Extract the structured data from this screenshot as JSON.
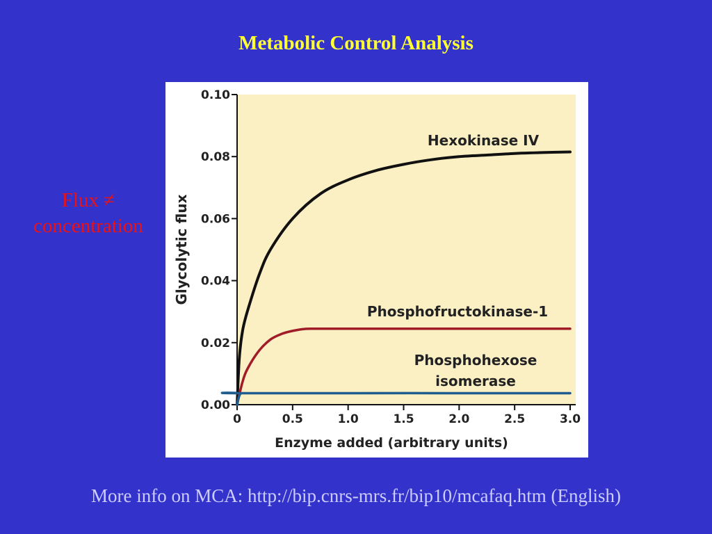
{
  "slide": {
    "title": "Metabolic Control Analysis",
    "side_note": [
      "Flux ≠",
      "concentration"
    ],
    "footer": "More info on MCA: http://bip.cnrs-mrs.fr/bip10/mcafaq.htm (English)"
  },
  "colors": {
    "background": "#3333cc",
    "title": "#ffff33",
    "side_note": "#ee1111",
    "footer": "#ccccff",
    "plot_area": "#fbefc4"
  },
  "chart_data": {
    "type": "line",
    "title": "",
    "xlabel": "Enzyme added (arbitrary units)",
    "ylabel": "Glycolytic flux",
    "xlim": [
      0,
      3.0
    ],
    "ylim": [
      0,
      0.1
    ],
    "x_ticks": [
      "0",
      "0.5",
      "1.0",
      "1.5",
      "2.0",
      "2.5",
      "3.0"
    ],
    "y_ticks": [
      "0.00",
      "0.02",
      "0.04",
      "0.06",
      "0.08",
      "0.10"
    ],
    "grid": false,
    "series": [
      {
        "name": "Hexokinase IV",
        "color": "#111111",
        "x": [
          0,
          0.02,
          0.05,
          0.1,
          0.2,
          0.3,
          0.5,
          0.75,
          1.0,
          1.25,
          1.5,
          1.75,
          2.0,
          2.25,
          2.5,
          2.75,
          3.0
        ],
        "y": [
          0,
          0.015,
          0.024,
          0.031,
          0.042,
          0.05,
          0.06,
          0.068,
          0.0725,
          0.0755,
          0.0775,
          0.079,
          0.08,
          0.0805,
          0.081,
          0.0813,
          0.0815
        ]
      },
      {
        "name": "Phosphofructokinase-1",
        "color": "#a01c28",
        "x": [
          0,
          0.05,
          0.1,
          0.2,
          0.3,
          0.4,
          0.5,
          0.6,
          0.7,
          1.0,
          1.5,
          2.0,
          2.5,
          3.0
        ],
        "y": [
          0,
          0.0075,
          0.012,
          0.0175,
          0.021,
          0.0228,
          0.0238,
          0.0244,
          0.0245,
          0.0245,
          0.0245,
          0.0245,
          0.0245,
          0.0245
        ]
      },
      {
        "name": "Phosphohexose isomerase",
        "name_lines": [
          "Phosphohexose",
          "isomerase"
        ],
        "color": "#1f5d8e",
        "x": [
          0,
          0.03,
          0.1,
          3.0
        ],
        "y": [
          0,
          0.0035,
          0.0037,
          0.0037
        ]
      }
    ]
  }
}
